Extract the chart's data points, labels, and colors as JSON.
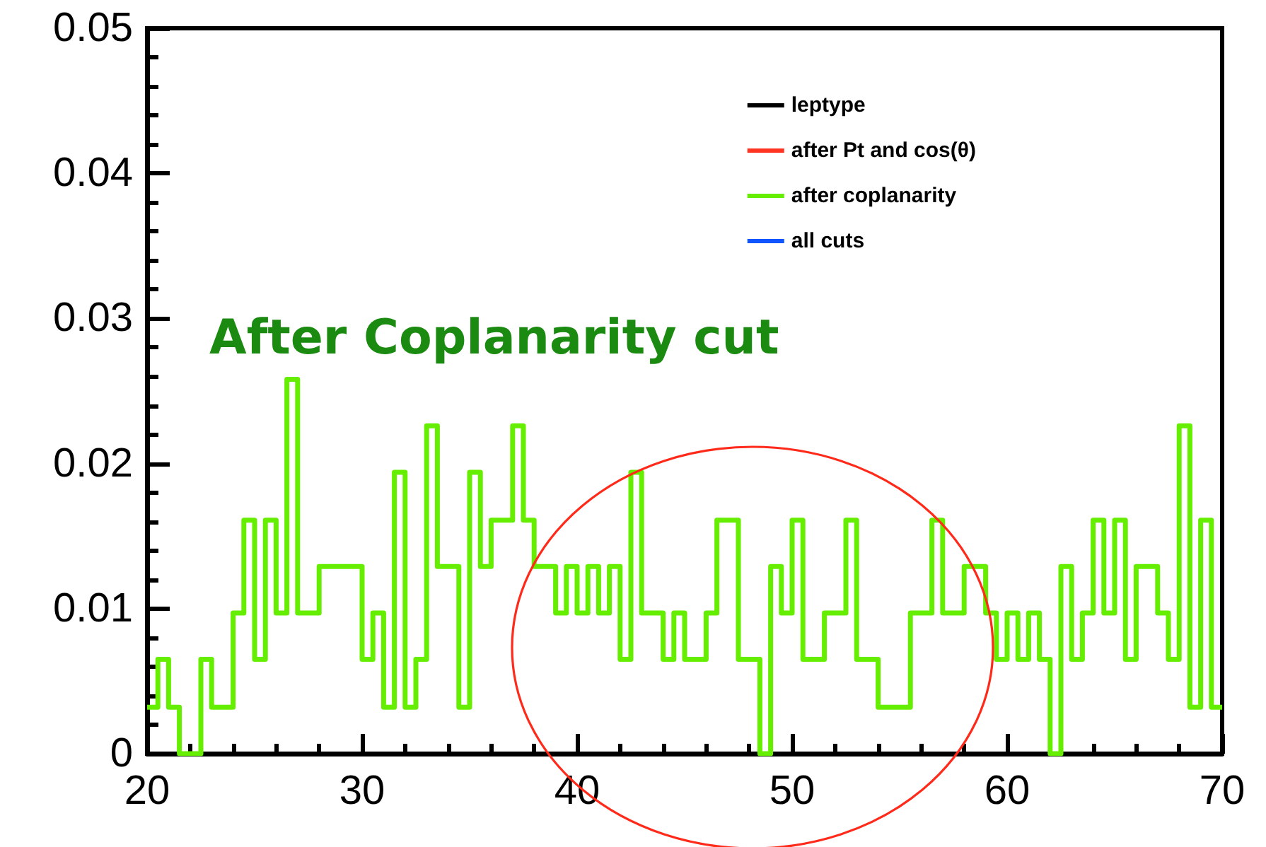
{
  "chart_data": {
    "type": "histogram",
    "bins": [
      20,
      20.5,
      21,
      21.5,
      22,
      22.5,
      23,
      23.5,
      24,
      24.5,
      25,
      25.5,
      26,
      26.5,
      27,
      27.5,
      28,
      28.5,
      29,
      29.5,
      30,
      30.5,
      31,
      31.5,
      32,
      32.5,
      33,
      33.5,
      34,
      34.5,
      35,
      35.5,
      36,
      36.5,
      37,
      37.5,
      38,
      38.5,
      39,
      39.5,
      40,
      40.5,
      41,
      41.5,
      42,
      42.5,
      43,
      43.5,
      44,
      44.5,
      45,
      45.5,
      46,
      46.5,
      47,
      47.5,
      48,
      48.5,
      49,
      49.5,
      50,
      50.5,
      51,
      51.5,
      52,
      52.5,
      53,
      53.5,
      54,
      54.5,
      55,
      55.5,
      56,
      56.5,
      57,
      57.5,
      58,
      58.5,
      59,
      59.5,
      60,
      60.5,
      61,
      61.5,
      62,
      62.5,
      63,
      63.5,
      64,
      64.5,
      65,
      65.5,
      66,
      66.5,
      67,
      67.5,
      68,
      68.5,
      69,
      69.5,
      70
    ],
    "series": [
      {
        "name": "leptype",
        "color": "#000000",
        "type": "line"
      },
      {
        "name": "after Pt and cos(θ)",
        "color": "#ff3322",
        "type": "line"
      },
      {
        "name": "after coplanarity",
        "color": "#66ee00",
        "values": [
          0.0032,
          0.0065,
          0.0032,
          0,
          0,
          0.0065,
          0.0032,
          0.0032,
          0.0097,
          0.0161,
          0.0065,
          0.0161,
          0.0097,
          0.0258,
          0.0097,
          0.0097,
          0.0129,
          0.0129,
          0.0129,
          0.0129,
          0.0065,
          0.0097,
          0.0032,
          0.0194,
          0.0032,
          0.0065,
          0.0226,
          0.0129,
          0.0129,
          0.0032,
          0.0194,
          0.0129,
          0.0161,
          0.0161,
          0.0226,
          0.0161,
          0.0129,
          0.0129,
          0.0097,
          0.0129,
          0.0097,
          0.0129,
          0.0097,
          0.0129,
          0.0065,
          0.0194,
          0.0097,
          0.0097,
          0.0065,
          0.0097,
          0.0065,
          0.0065,
          0.0097,
          0.0161,
          0.0161,
          0.0065,
          0.0065,
          0,
          0.0129,
          0.0097,
          0.0161,
          0.0065,
          0.0065,
          0.0097,
          0.0097,
          0.0161,
          0.0065,
          0.0065,
          0.0032,
          0.0032,
          0.0032,
          0.0097,
          0.0097,
          0.0161,
          0.0097,
          0.0097,
          0.0129,
          0.0129,
          0.0097,
          0.0065,
          0.0097,
          0.0065,
          0.0097,
          0.0065,
          0,
          0.0129,
          0.0065,
          0.0097,
          0.0161,
          0.0097,
          0.0161,
          0.0065,
          0.0129,
          0.0129,
          0.0097,
          0.0065,
          0.0226,
          0.0032,
          0.0161,
          0.0032
        ]
      },
      {
        "name": "all cuts",
        "color": "#1155ff",
        "type": "line"
      }
    ],
    "xlim": [
      20,
      70
    ],
    "xticks": [
      20,
      30,
      40,
      50,
      60,
      70
    ],
    "ylim": [
      0,
      0.05
    ],
    "yticks": [
      0,
      0.01,
      0.02,
      0.03,
      0.04,
      0.05
    ],
    "annotations": [
      "After Coplanarity cut"
    ],
    "legend": "top right",
    "grid": false
  }
}
